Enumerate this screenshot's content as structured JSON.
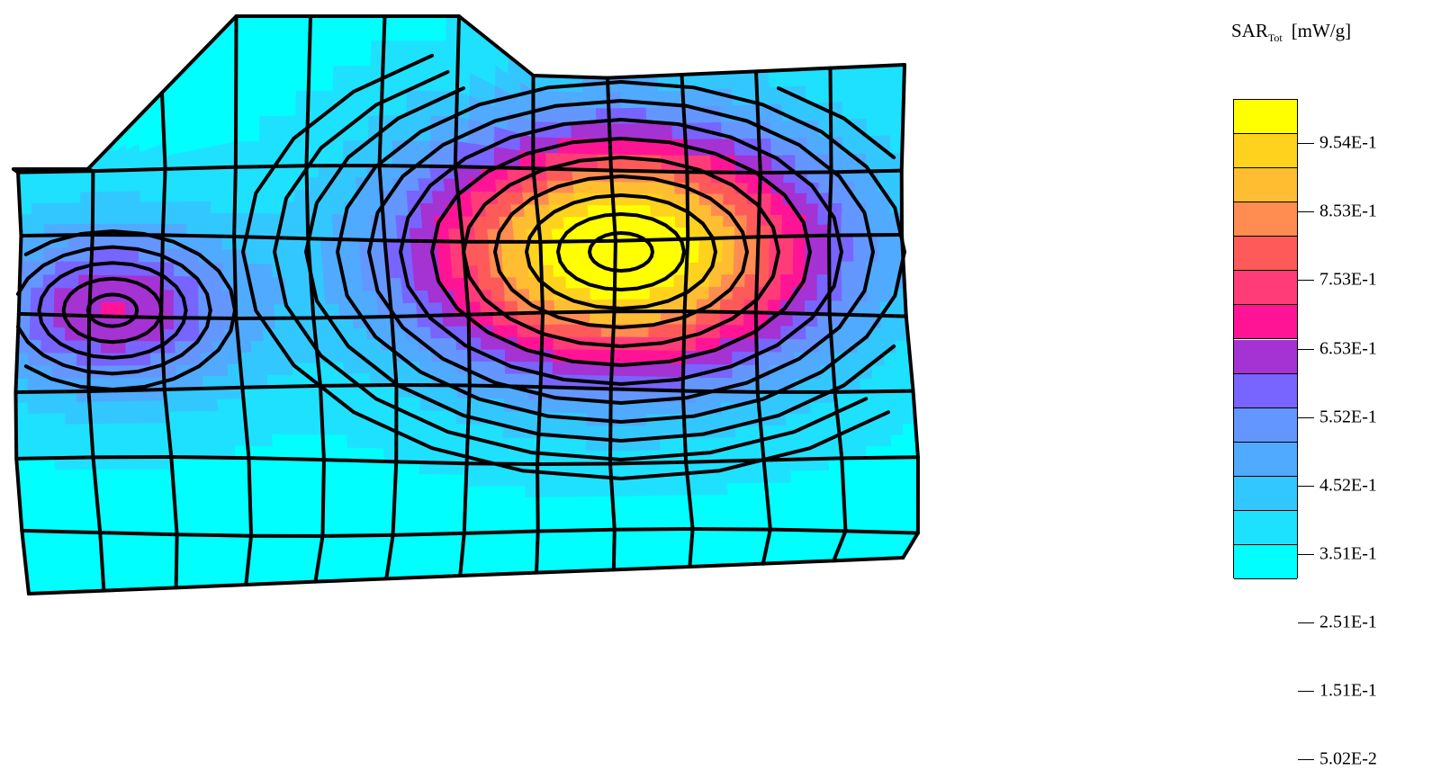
{
  "chart_data": {
    "type": "heatmap",
    "title": "",
    "xlabel": "",
    "ylabel": "",
    "colorbar": {
      "title": "SAR",
      "subscript": "Tot",
      "unit": "[mW/g]",
      "tick_labels": [
        "9.54E-1",
        "8.53E-1",
        "7.53E-1",
        "6.53E-1",
        "5.52E-1",
        "4.52E-1",
        "3.51E-1",
        "2.51E-1",
        "1.51E-1",
        "5.02E-2"
      ],
      "tick_values": [
        0.954,
        0.853,
        0.753,
        0.653,
        0.552,
        0.452,
        0.351,
        0.251,
        0.151,
        0.0502
      ],
      "bands_top_to_bottom": [
        "#ffff00",
        "#ffd21e",
        "#ffbe32",
        "#ff8c50",
        "#ff5a5a",
        "#ff3c78",
        "#ff1496",
        "#a532d2",
        "#7864ff",
        "#6496ff",
        "#50aaff",
        "#32c8ff",
        "#1ee1ff",
        "#00ffff"
      ]
    },
    "field": {
      "peak_value": 1.0,
      "peak_location": "upper-centre-right",
      "secondary_peak_value": 0.45,
      "secondary_peak_location": "left",
      "background_value": 0.05
    },
    "mesh": "deformed quadrilateral grid with black edges"
  }
}
